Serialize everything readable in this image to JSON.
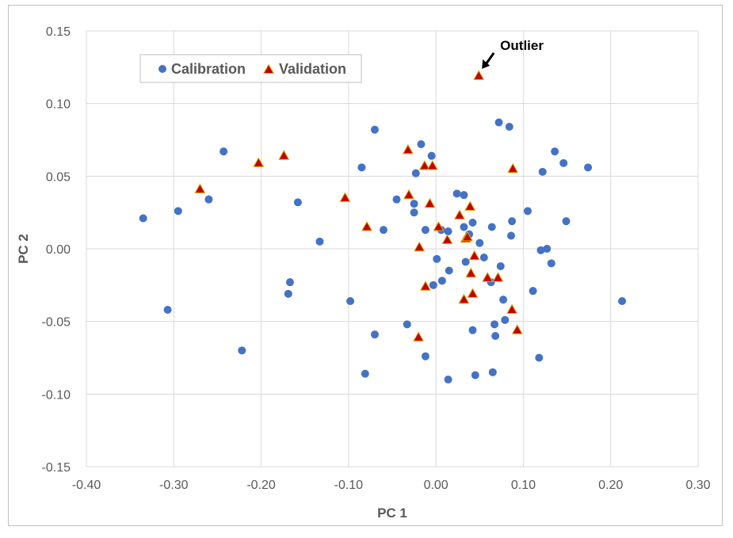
{
  "chart_data": {
    "type": "scatter",
    "title": "",
    "xlabel": "PC 1",
    "ylabel": "PC 2",
    "xlim": [
      -0.4,
      0.3
    ],
    "ylim": [
      -0.15,
      0.15
    ],
    "xticks": [
      "-0.40",
      "-0.30",
      "-0.20",
      "-0.10",
      "0.00",
      "0.10",
      "0.20",
      "0.30"
    ],
    "yticks": [
      "0.15",
      "0.10",
      "0.05",
      "0.00",
      "-0.05",
      "-0.10",
      "-0.15"
    ],
    "grid": true,
    "legend_position": "top-left",
    "series": [
      {
        "name": "Calibration",
        "marker": "circle",
        "color": "#4472c4",
        "points": [
          [
            -0.335,
            0.021
          ],
          [
            -0.307,
            -0.042
          ],
          [
            -0.295,
            0.026
          ],
          [
            -0.26,
            0.034
          ],
          [
            -0.243,
            0.067
          ],
          [
            -0.222,
            -0.07
          ],
          [
            -0.167,
            -0.023
          ],
          [
            -0.169,
            -0.031
          ],
          [
            -0.158,
            0.032
          ],
          [
            -0.133,
            0.005
          ],
          [
            -0.098,
            -0.036
          ],
          [
            -0.085,
            0.056
          ],
          [
            -0.081,
            -0.086
          ],
          [
            -0.07,
            0.082
          ],
          [
            -0.07,
            -0.059
          ],
          [
            -0.06,
            0.013
          ],
          [
            -0.045,
            0.034
          ],
          [
            -0.033,
            -0.052
          ],
          [
            -0.025,
            0.031
          ],
          [
            -0.025,
            0.025
          ],
          [
            -0.023,
            0.052
          ],
          [
            -0.017,
            0.072
          ],
          [
            -0.012,
            0.013
          ],
          [
            -0.012,
            -0.074
          ],
          [
            -0.005,
            0.064
          ],
          [
            -0.003,
            -0.025
          ],
          [
            0.001,
            -0.007
          ],
          [
            0.006,
            0.013
          ],
          [
            0.007,
            -0.022
          ],
          [
            0.014,
            0.012
          ],
          [
            0.014,
            -0.09
          ],
          [
            0.015,
            -0.015
          ],
          [
            0.024,
            0.038
          ],
          [
            0.032,
            0.037
          ],
          [
            0.032,
            0.015
          ],
          [
            0.034,
            -0.009
          ],
          [
            0.038,
            0.01
          ],
          [
            0.042,
            0.018
          ],
          [
            0.042,
            -0.056
          ],
          [
            0.045,
            -0.087
          ],
          [
            0.05,
            0.004
          ],
          [
            0.055,
            -0.006
          ],
          [
            0.063,
            -0.023
          ],
          [
            0.064,
            0.015
          ],
          [
            0.065,
            -0.085
          ],
          [
            0.067,
            -0.052
          ],
          [
            0.068,
            -0.06
          ],
          [
            0.072,
            0.087
          ],
          [
            0.074,
            -0.012
          ],
          [
            0.077,
            -0.035
          ],
          [
            0.079,
            -0.049
          ],
          [
            0.084,
            0.084
          ],
          [
            0.086,
            0.009
          ],
          [
            0.087,
            0.019
          ],
          [
            0.105,
            0.026
          ],
          [
            0.111,
            -0.029
          ],
          [
            0.118,
            -0.075
          ],
          [
            0.12,
            -0.001
          ],
          [
            0.122,
            0.053
          ],
          [
            0.127,
            0.0
          ],
          [
            0.132,
            -0.01
          ],
          [
            0.136,
            0.067
          ],
          [
            0.146,
            0.059
          ],
          [
            0.149,
            0.019
          ],
          [
            0.174,
            0.056
          ],
          [
            0.213,
            -0.036
          ]
        ]
      },
      {
        "name": "Validation",
        "marker": "triangle",
        "color": "#c00000",
        "points": [
          [
            -0.27,
            0.041
          ],
          [
            -0.203,
            0.059
          ],
          [
            -0.174,
            0.064
          ],
          [
            -0.104,
            0.035
          ],
          [
            -0.079,
            0.015
          ],
          [
            -0.032,
            0.068
          ],
          [
            -0.031,
            0.037
          ],
          [
            -0.02,
            -0.061
          ],
          [
            -0.019,
            0.001
          ],
          [
            -0.013,
            0.057
          ],
          [
            -0.012,
            -0.026
          ],
          [
            -0.007,
            0.031
          ],
          [
            -0.004,
            0.057
          ],
          [
            0.003,
            0.015
          ],
          [
            0.013,
            0.006
          ],
          [
            0.027,
            0.023
          ],
          [
            0.032,
            -0.035
          ],
          [
            0.034,
            0.007
          ],
          [
            0.036,
            0.008
          ],
          [
            0.039,
            0.029
          ],
          [
            0.04,
            -0.017
          ],
          [
            0.042,
            -0.031
          ],
          [
            0.044,
            -0.005
          ],
          [
            0.049,
            0.119
          ],
          [
            0.059,
            -0.02
          ],
          [
            0.071,
            -0.02
          ],
          [
            0.087,
            -0.042
          ],
          [
            0.088,
            0.055
          ],
          [
            0.093,
            -0.056
          ]
        ]
      }
    ],
    "annotations": [
      {
        "text": "Outlier",
        "target": [
          0.049,
          0.119
        ]
      }
    ]
  }
}
